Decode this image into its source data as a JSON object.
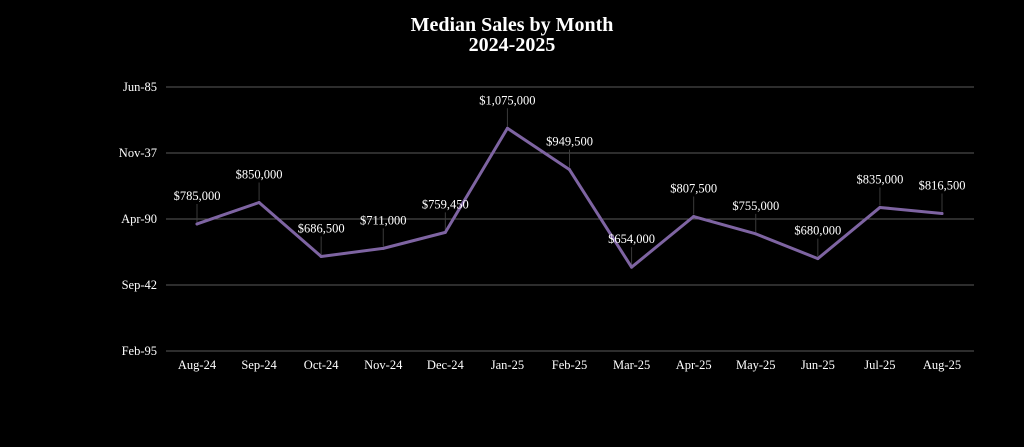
{
  "chart_data": {
    "type": "line",
    "title": "Median Sales by Month",
    "subtitle": "2024-2025",
    "xlabel": "",
    "ylabel": "",
    "categories": [
      "Aug-24",
      "Sep-24",
      "Oct-24",
      "Nov-24",
      "Dec-24",
      "Jan-25",
      "Feb-25",
      "Mar-25",
      "Apr-25",
      "May-25",
      "Jun-25",
      "Jul-25",
      "Aug-25"
    ],
    "series": [
      {
        "name": "Median Sales",
        "color": "#7e64a2",
        "values": [
          785000,
          850000,
          686500,
          711000,
          759450,
          1075000,
          949500,
          654000,
          807500,
          755000,
          680000,
          835000,
          816500
        ],
        "labels": [
          "$785,000",
          "$850,000",
          "$686,500",
          "$711,000",
          "$759,450",
          "$1,075,000",
          "$949,500",
          "$654,000",
          "$807,500",
          "$755,000",
          "$680,000",
          "$835,000",
          "$816,500"
        ]
      }
    ],
    "y_ticks": [
      {
        "value": 1200000,
        "label": "Jun-85"
      },
      {
        "value": 1000000,
        "label": "Nov-37"
      },
      {
        "value": 800000,
        "label": "Apr-90"
      },
      {
        "value": 600000,
        "label": "Sep-42"
      },
      {
        "value": 400000,
        "label": "Feb-95"
      }
    ],
    "ylim": [
      400000,
      1200000
    ],
    "grid": true,
    "legend": "none",
    "colors": {
      "background": "#000000",
      "text": "#ffffff",
      "grid": "#5a5a5a",
      "line": "#7e64a2"
    }
  }
}
